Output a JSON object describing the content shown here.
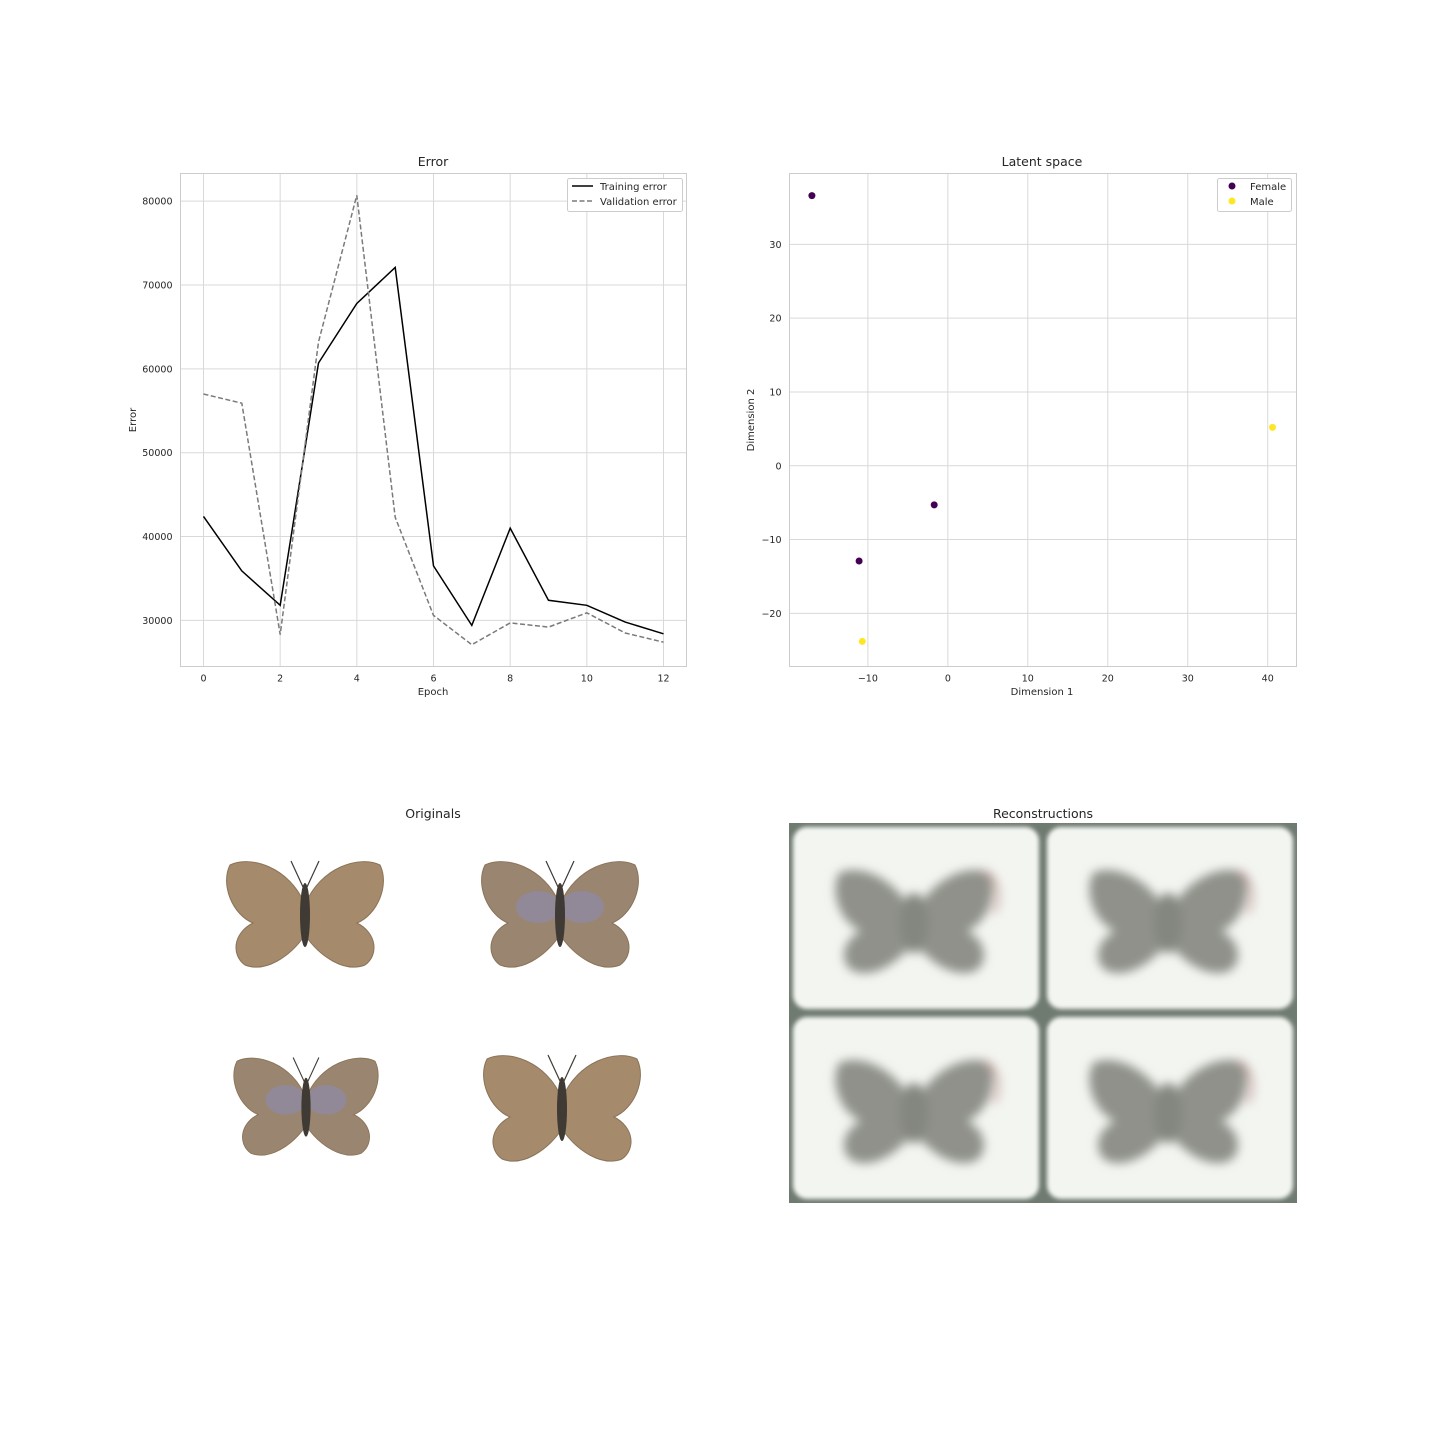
{
  "colors": {
    "training": "#000000",
    "validation": "#7a7a7a",
    "female": "#440154",
    "male": "#fde725",
    "grid": "#d9d9d9",
    "axes": "#cccccc",
    "wing_brown": "#a58a6c",
    "wing_blue": "#8e8aa6",
    "body_dark": "#3f3a34",
    "recon_blob": "#8f918a",
    "recon_bg": "#f3f5f1",
    "recon_edge": "#6f7a70"
  },
  "chart_data": [
    {
      "type": "line",
      "title": "Error",
      "xlabel": "Epoch",
      "ylabel": "Error",
      "xlim": [
        -0.6,
        12.6
      ],
      "ylim": [
        24500,
        83300
      ],
      "xticks": [
        0,
        2,
        4,
        6,
        8,
        10,
        12
      ],
      "yticks": [
        30000,
        40000,
        50000,
        60000,
        70000,
        80000
      ],
      "grid": true,
      "legend": "top-right",
      "x": [
        0,
        1,
        2,
        3,
        4,
        5,
        6,
        7,
        8,
        9,
        10,
        11,
        12
      ],
      "series": [
        {
          "name": "Training error",
          "style": "solid",
          "values": [
            42400,
            35900,
            31800,
            60700,
            67800,
            72100,
            36500,
            29400,
            41000,
            32400,
            31800,
            29800,
            28400
          ]
        },
        {
          "name": "Validation error",
          "style": "dashed",
          "values": [
            57000,
            55900,
            28300,
            63200,
            80700,
            42300,
            30600,
            27100,
            29700,
            29200,
            30900,
            28500,
            27400
          ]
        }
      ]
    },
    {
      "type": "scatter",
      "title": "Latent space",
      "xlabel": "Dimension 1",
      "ylabel": "Dimension 2",
      "xlim": [
        -19.8,
        43.6
      ],
      "ylim": [
        -27.2,
        39.6
      ],
      "xticks": [
        -10,
        0,
        10,
        20,
        30,
        40
      ],
      "yticks": [
        -20,
        -10,
        0,
        10,
        20,
        30
      ],
      "grid": true,
      "legend": "top-right",
      "series": [
        {
          "name": "Female",
          "points": [
            [
              -17,
              36.6
            ],
            [
              -11.1,
              -12.9
            ],
            [
              -1.7,
              -5.3
            ]
          ]
        },
        {
          "name": "Male",
          "points": [
            [
              40.6,
              5.2
            ],
            [
              -10.7,
              -23.8
            ]
          ]
        }
      ]
    }
  ],
  "images": {
    "originals_title": "Originals",
    "reconstructions_title": "Reconstructions"
  }
}
